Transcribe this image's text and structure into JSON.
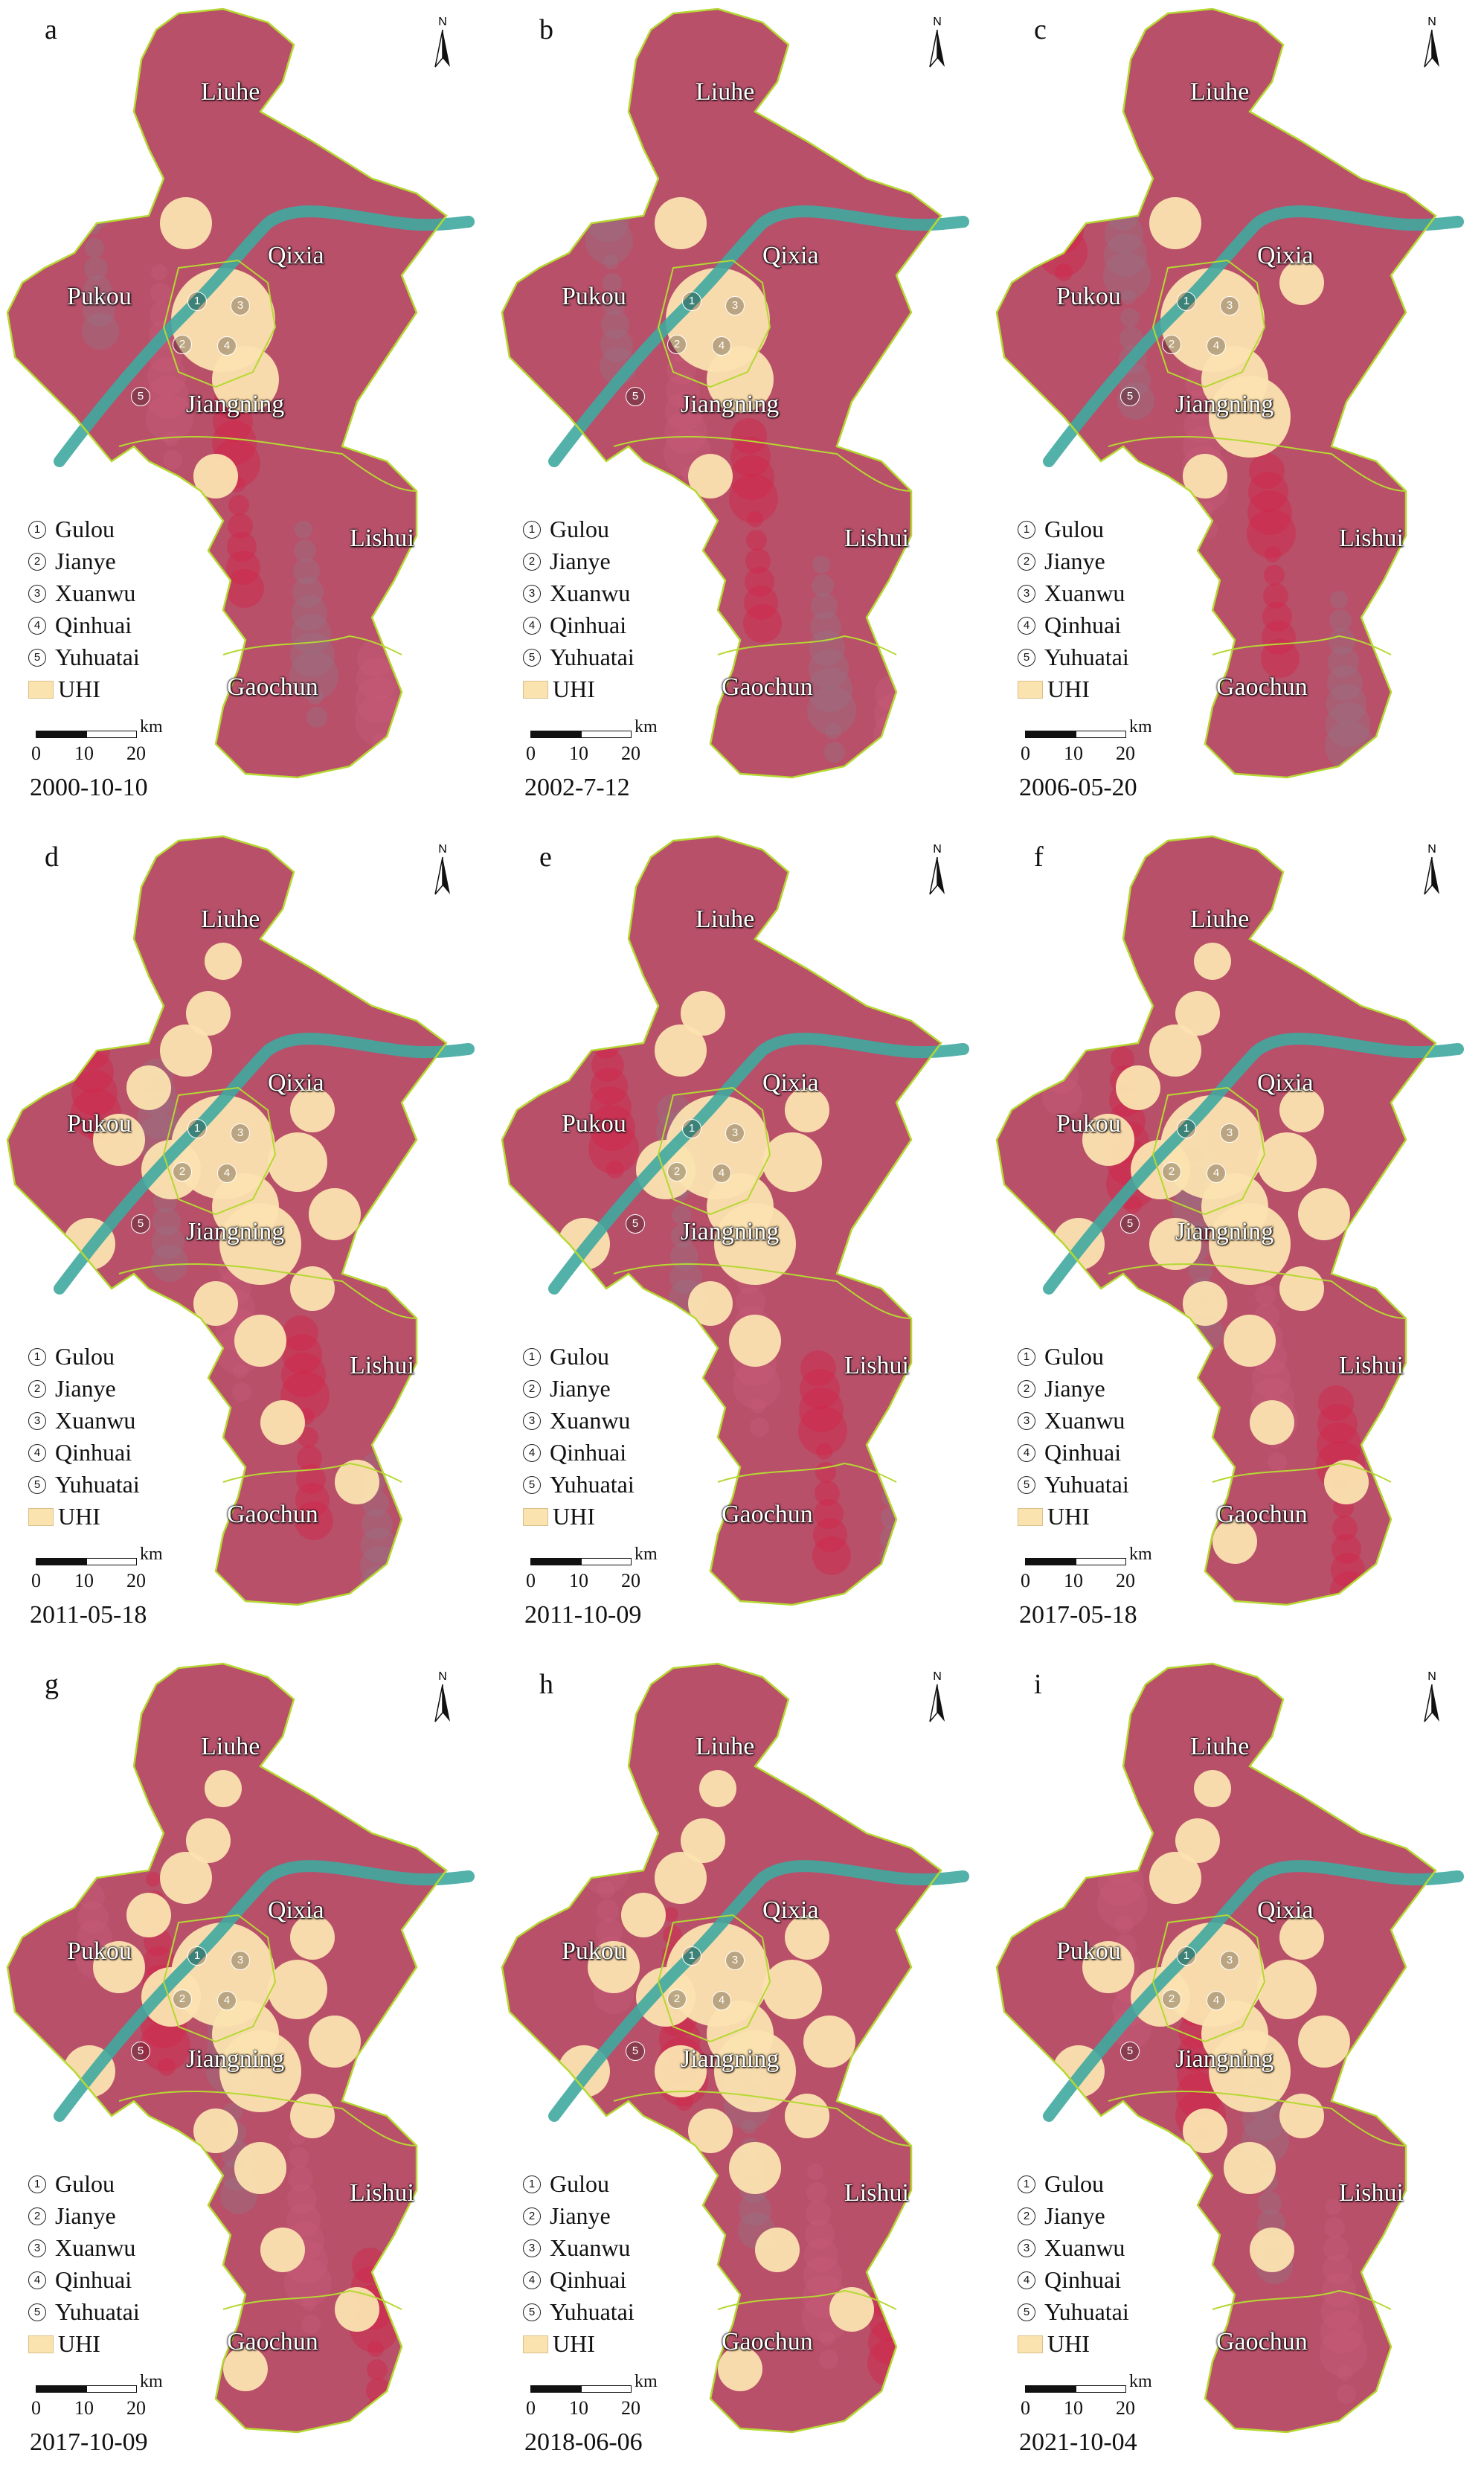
{
  "legend": {
    "districts": [
      {
        "num": "1",
        "label": "Gulou"
      },
      {
        "num": "2",
        "label": "Jianye"
      },
      {
        "num": "3",
        "label": "Xuanwu"
      },
      {
        "num": "4",
        "label": "Qinhuai"
      },
      {
        "num": "5",
        "label": "Yuhuatai"
      }
    ],
    "uhi_label": "UHI",
    "scale_unit": "km",
    "scale_ticks": [
      "0",
      "10",
      "20"
    ]
  },
  "north_label": "N",
  "place_names": {
    "liuhe": "Liuhe",
    "qixia": "Qixia",
    "pukou": "Pukou",
    "jiangning": "Jiangning",
    "lishui": "Lishui",
    "gaochun": "Gaochun"
  },
  "colors": {
    "vegetation": "#b8506a",
    "urban_uhi": "#fbe3b0",
    "river": "#3fa8a0",
    "water": "#1d3550",
    "boundary": "#b5d832"
  },
  "panels": [
    {
      "letter": "a",
      "date": "2000-10-10",
      "uhi_level": 0.12
    },
    {
      "letter": "b",
      "date": "2002-7-12",
      "uhi_level": 0.1
    },
    {
      "letter": "c",
      "date": "2006-05-20",
      "uhi_level": 0.18
    },
    {
      "letter": "d",
      "date": "2011-05-18",
      "uhi_level": 0.45
    },
    {
      "letter": "e",
      "date": "2011-10-09",
      "uhi_level": 0.3
    },
    {
      "letter": "f",
      "date": "2017-05-18",
      "uhi_level": 0.5
    },
    {
      "letter": "g",
      "date": "2017-10-09",
      "uhi_level": 0.48
    },
    {
      "letter": "h",
      "date": "2018-06-06",
      "uhi_level": 0.52
    },
    {
      "letter": "i",
      "date": "2021-10-04",
      "uhi_level": 0.42
    }
  ]
}
